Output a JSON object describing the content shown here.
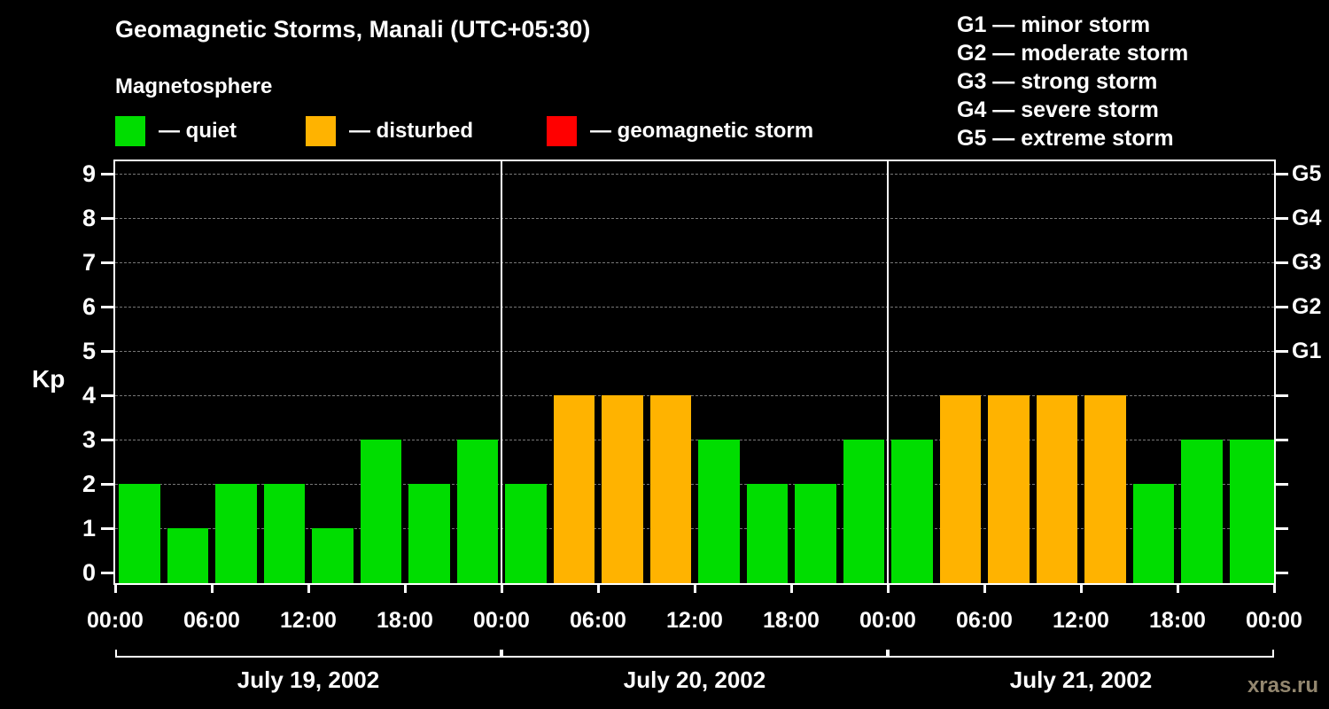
{
  "header": {
    "title": "Geomagnetic Storms, Manali (UTC+05:30)",
    "subtitle": "Magnetosphere"
  },
  "legend": {
    "items": [
      {
        "name": "quiet",
        "label": "— quiet",
        "color": "#00dd00"
      },
      {
        "name": "disturbed",
        "label": "— disturbed",
        "color": "#ffb300"
      },
      {
        "name": "storm",
        "label": "— geomagnetic storm",
        "color": "#ff0000"
      }
    ]
  },
  "storm_scale": {
    "separator": "—",
    "items": [
      {
        "code": "G1",
        "label": "minor storm"
      },
      {
        "code": "G2",
        "label": "moderate storm"
      },
      {
        "code": "G3",
        "label": "strong storm"
      },
      {
        "code": "G4",
        "label": "severe storm"
      },
      {
        "code": "G5",
        "label": "extreme storm"
      }
    ]
  },
  "watermark": {
    "text": "xras.ru",
    "color": "#93876f"
  },
  "chart_data": {
    "type": "bar",
    "title": "Geomagnetic Storms, Manali (UTC+05:30)",
    "ylabel": "Kp",
    "ylim": [
      0,
      9
    ],
    "yticks": [
      0,
      1,
      2,
      3,
      4,
      5,
      6,
      7,
      8,
      9
    ],
    "grid": "horizontal-dashed",
    "bar_interval_hours": 3,
    "x_tick_labels": [
      "00:00",
      "06:00",
      "12:00",
      "18:00",
      "00:00",
      "06:00",
      "12:00",
      "18:00",
      "00:00",
      "06:00",
      "12:00",
      "18:00",
      "00:00"
    ],
    "right_axis_labels": [
      {
        "kp": 5,
        "label": "G1"
      },
      {
        "kp": 6,
        "label": "G2"
      },
      {
        "kp": 7,
        "label": "G3"
      },
      {
        "kp": 8,
        "label": "G4"
      },
      {
        "kp": 9,
        "label": "G5"
      }
    ],
    "days": [
      {
        "date": "July 19, 2002",
        "values": [
          2,
          1,
          2,
          2,
          1,
          3,
          2,
          3
        ]
      },
      {
        "date": "July 20, 2002",
        "values": [
          2,
          4,
          4,
          4,
          3,
          2,
          2,
          3
        ]
      },
      {
        "date": "July 21, 2002",
        "values": [
          3,
          4,
          4,
          4,
          4,
          2,
          3,
          3
        ]
      }
    ],
    "color_thresholds": {
      "quiet_max": 3,
      "disturbed_max": 4
    },
    "colors": {
      "quiet": "#00dd00",
      "disturbed": "#ffb300",
      "storm": "#ff0000"
    }
  }
}
